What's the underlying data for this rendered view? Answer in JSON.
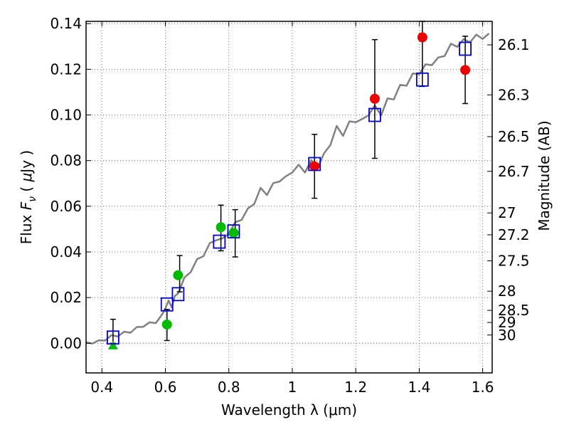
{
  "chart_data": {
    "type": "scatter",
    "xlabel": "Wavelength  λ (μm)",
    "ylabel": "Flux  F_ν  ( μJy )",
    "ylabel_parts": [
      "Flux  ",
      "F",
      "ν",
      "  ( ",
      "μ",
      "Jy )"
    ],
    "y2label": "Magnitude (AB)",
    "xlim": [
      0.35,
      1.63
    ],
    "ylim": [
      -0.013,
      0.141
    ],
    "grid": true,
    "x_ticks": [
      0.4,
      0.6,
      0.8,
      1.0,
      1.2,
      1.4,
      1.6
    ],
    "x_tick_labels": [
      "0.4",
      "0.6",
      "0.8",
      "1",
      "1.2",
      "1.4",
      "1.6"
    ],
    "y_ticks": [
      0.0,
      0.02,
      0.04,
      0.06,
      0.08,
      0.1,
      0.12,
      0.14
    ],
    "y_tick_labels": [
      "0.00",
      "0.02",
      "0.04",
      "0.06",
      "0.08",
      "0.10",
      "0.12",
      "0.14"
    ],
    "y2_ticks": [
      {
        "label": "26.1",
        "flux": 0.1307
      },
      {
        "label": "26.3",
        "flux": 0.1088
      },
      {
        "label": "26.5",
        "flux": 0.0905
      },
      {
        "label": "26.7",
        "flux": 0.0753
      },
      {
        "label": "27",
        "flux": 0.0571
      },
      {
        "label": "27.2",
        "flux": 0.0475
      },
      {
        "label": "27.5",
        "flux": 0.0361
      },
      {
        "label": "28",
        "flux": 0.0228
      },
      {
        "label": "28.5",
        "flux": 0.0144
      },
      {
        "label": "29",
        "flux": 0.0091
      },
      {
        "label": "30",
        "flux": 0.0036
      }
    ],
    "colors": {
      "model_line": "#808080",
      "model_points": "#0000cc",
      "green_points": "#00bb00",
      "red_points": "#ee0000",
      "errorbar": "#000000",
      "grid": "#555555"
    },
    "series": [
      {
        "kind": "line",
        "role": "model-spectrum",
        "points": [
          [
            0.35,
            0.0
          ],
          [
            0.37,
            0.0003
          ],
          [
            0.39,
            0.0008
          ],
          [
            0.41,
            0.0017
          ],
          [
            0.43,
            0.003
          ],
          [
            0.45,
            0.0035
          ],
          [
            0.47,
            0.0045
          ],
          [
            0.49,
            0.0052
          ],
          [
            0.51,
            0.0065
          ],
          [
            0.53,
            0.0078
          ],
          [
            0.55,
            0.0085
          ],
          [
            0.57,
            0.0095
          ],
          [
            0.59,
            0.012
          ],
          [
            0.6,
            0.016
          ],
          [
            0.61,
            0.018
          ],
          [
            0.62,
            0.0165
          ],
          [
            0.63,
            0.02
          ],
          [
            0.64,
            0.0225
          ],
          [
            0.66,
            0.028
          ],
          [
            0.68,
            0.032
          ],
          [
            0.7,
            0.036
          ],
          [
            0.72,
            0.039
          ],
          [
            0.74,
            0.043
          ],
          [
            0.76,
            0.046
          ],
          [
            0.78,
            0.045
          ],
          [
            0.8,
            0.049
          ],
          [
            0.82,
            0.052
          ],
          [
            0.84,
            0.055
          ],
          [
            0.86,
            0.058
          ],
          [
            0.88,
            0.062
          ],
          [
            0.9,
            0.067
          ],
          [
            0.92,
            0.066
          ],
          [
            0.94,
            0.069
          ],
          [
            0.96,
            0.072
          ],
          [
            0.98,
            0.072
          ],
          [
            1.0,
            0.076
          ],
          [
            1.02,
            0.077
          ],
          [
            1.04,
            0.076
          ],
          [
            1.06,
            0.079
          ],
          [
            1.08,
            0.078
          ],
          [
            1.1,
            0.082
          ],
          [
            1.12,
            0.088
          ],
          [
            1.14,
            0.094
          ],
          [
            1.16,
            0.092
          ],
          [
            1.18,
            0.096
          ],
          [
            1.2,
            0.098
          ],
          [
            1.22,
            0.097
          ],
          [
            1.24,
            0.101
          ],
          [
            1.26,
            0.103
          ],
          [
            1.28,
            0.101
          ],
          [
            1.3,
            0.106
          ],
          [
            1.32,
            0.108
          ],
          [
            1.34,
            0.112
          ],
          [
            1.36,
            0.114
          ],
          [
            1.38,
            0.117
          ],
          [
            1.4,
            0.119
          ],
          [
            1.42,
            0.121
          ],
          [
            1.44,
            0.123
          ],
          [
            1.46,
            0.124
          ],
          [
            1.48,
            0.127
          ],
          [
            1.5,
            0.13
          ],
          [
            1.52,
            0.131
          ],
          [
            1.54,
            0.132
          ],
          [
            1.56,
            0.133
          ],
          [
            1.58,
            0.134
          ],
          [
            1.6,
            0.1345
          ],
          [
            1.62,
            0.1345
          ]
        ]
      },
      {
        "kind": "square",
        "role": "model-photometry",
        "points": [
          [
            0.435,
            0.0025
          ],
          [
            0.605,
            0.017
          ],
          [
            0.64,
            0.0215
          ],
          [
            0.77,
            0.0445
          ],
          [
            0.815,
            0.049
          ],
          [
            1.07,
            0.0785
          ],
          [
            1.26,
            0.1
          ],
          [
            1.41,
            0.1155
          ],
          [
            1.545,
            0.129
          ]
        ]
      },
      {
        "kind": "circle",
        "role": "green-detections",
        "points": [
          [
            0.605,
            0.0082
          ],
          [
            0.64,
            0.0298
          ],
          [
            0.775,
            0.0508
          ],
          [
            0.815,
            0.0483
          ]
        ]
      },
      {
        "kind": "circle",
        "role": "red-detections",
        "points": [
          [
            1.07,
            0.0775
          ],
          [
            1.26,
            0.1071
          ],
          [
            1.41,
            0.134
          ],
          [
            1.545,
            0.1197
          ]
        ]
      },
      {
        "kind": "triangle",
        "role": "upper-limit",
        "points": [
          [
            0.435,
            -0.0008
          ]
        ]
      },
      {
        "kind": "errorbar",
        "role": "errorbars",
        "bars": [
          {
            "x": 0.435,
            "low": 0.0,
            "high": 0.0105
          },
          {
            "x": 0.605,
            "low": 0.0012,
            "high": 0.0148
          },
          {
            "x": 0.645,
            "low": 0.0225,
            "high": 0.0384
          },
          {
            "x": 0.775,
            "low": 0.0405,
            "high": 0.0605
          },
          {
            "x": 0.82,
            "low": 0.0378,
            "high": 0.0585
          },
          {
            "x": 1.07,
            "low": 0.0635,
            "high": 0.0915
          },
          {
            "x": 1.26,
            "low": 0.081,
            "high": 0.133
          },
          {
            "x": 1.41,
            "low": 0.1125,
            "high": 0.141
          },
          {
            "x": 1.545,
            "low": 0.105,
            "high": 0.1345
          }
        ]
      }
    ]
  }
}
